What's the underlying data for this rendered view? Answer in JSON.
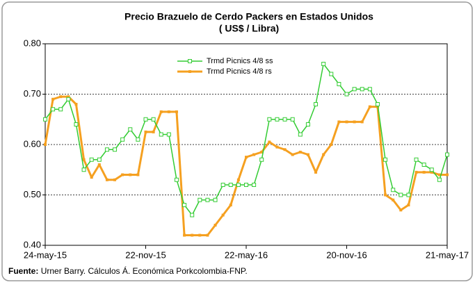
{
  "chart_data": {
    "type": "line",
    "title": "Precio Brazuelo de Cerdo Packers en Estados Unidos",
    "subtitle": "( US$ / Libra)",
    "source_label": "Fuente:",
    "source_text": "Urner Barry. Cálculos Á. Económica Porkcolombia-FNP.",
    "x": [
      0,
      2,
      4,
      6,
      8,
      10,
      12,
      14,
      16,
      18,
      20,
      22,
      24,
      26,
      28,
      30,
      32,
      34,
      36,
      38,
      40,
      42,
      44,
      46,
      48,
      50,
      52,
      54,
      56,
      58,
      60,
      62,
      64,
      66,
      68,
      70,
      72,
      74,
      76,
      78,
      80,
      82,
      84,
      86,
      88,
      90,
      92,
      94,
      96,
      98,
      100,
      102,
      104
    ],
    "xlim": [
      0,
      104
    ],
    "xticks": [
      {
        "value": 0,
        "label": "24-may-15"
      },
      {
        "value": 26,
        "label": "22-nov-15"
      },
      {
        "value": 52,
        "label": "22-may-16"
      },
      {
        "value": 78,
        "label": "20-nov-16"
      },
      {
        "value": 104,
        "label": "21-may-17"
      }
    ],
    "ylim": [
      0.4,
      0.8
    ],
    "yticks": [
      {
        "value": 0.4,
        "label": "0.40"
      },
      {
        "value": 0.5,
        "label": "0.50"
      },
      {
        "value": 0.6,
        "label": "0.60"
      },
      {
        "value": 0.7,
        "label": "0.70"
      },
      {
        "value": 0.8,
        "label": "0.80"
      }
    ],
    "grid": true,
    "legend": "top",
    "series": [
      {
        "name": "Trmd Picnics 4/8 ss",
        "color": "#33cc33",
        "marker": "square",
        "values": [
          0.65,
          0.67,
          0.67,
          0.69,
          0.64,
          0.55,
          0.57,
          0.57,
          0.59,
          0.59,
          0.61,
          0.63,
          0.61,
          0.65,
          0.65,
          0.62,
          0.62,
          0.53,
          0.48,
          0.46,
          0.49,
          0.49,
          0.49,
          0.52,
          0.52,
          0.52,
          0.52,
          0.52,
          0.57,
          0.65,
          0.65,
          0.65,
          0.65,
          0.62,
          0.64,
          0.68,
          0.76,
          0.74,
          0.72,
          0.7,
          0.71,
          0.71,
          0.71,
          0.68,
          0.57,
          0.51,
          0.5,
          0.5,
          0.57,
          0.56,
          0.55,
          0.53,
          0.58
        ]
      },
      {
        "name": "Trmd Picnics 4/8 rs",
        "color": "#f5a020",
        "marker": "dash",
        "values": [
          0.6,
          0.69,
          0.695,
          0.695,
          0.68,
          0.57,
          0.535,
          0.56,
          0.53,
          0.53,
          0.54,
          0.54,
          0.54,
          0.625,
          0.625,
          0.665,
          0.665,
          0.665,
          0.42,
          0.42,
          0.42,
          0.42,
          0.44,
          0.46,
          0.48,
          0.53,
          0.575,
          0.58,
          0.585,
          0.605,
          0.595,
          0.59,
          0.58,
          0.585,
          0.58,
          0.545,
          0.58,
          0.6,
          0.645,
          0.645,
          0.645,
          0.645,
          0.675,
          0.675,
          0.5,
          0.49,
          0.47,
          0.48,
          0.545,
          0.545,
          0.545,
          0.54,
          0.54
        ]
      }
    ]
  }
}
